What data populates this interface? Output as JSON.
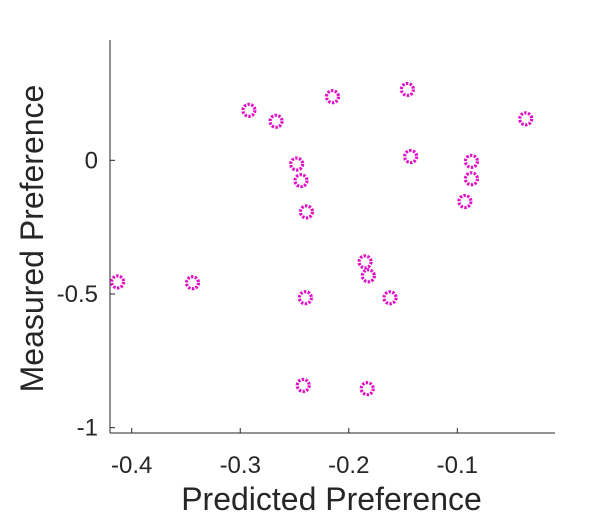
{
  "chart_data": {
    "type": "scatter",
    "xlabel": "Predicted Preference",
    "ylabel": "Measured Preference",
    "xlim": [
      -0.42,
      -0.01
    ],
    "ylim": [
      -1.02,
      0.45
    ],
    "xticks": [
      -0.4,
      -0.3,
      -0.2,
      -0.1
    ],
    "xtick_labels": [
      "-0.4",
      "-0.3",
      "-0.2",
      "-0.1"
    ],
    "yticks": [
      -1,
      -0.5,
      0
    ],
    "ytick_labels": [
      "-1",
      "-0.5",
      "0"
    ],
    "grid": false,
    "marker": "circle-with-dots",
    "color": "#e010c8",
    "points": [
      {
        "x": -0.413,
        "y": -0.455
      },
      {
        "x": -0.344,
        "y": -0.458
      },
      {
        "x": -0.292,
        "y": 0.187
      },
      {
        "x": -0.267,
        "y": 0.146
      },
      {
        "x": -0.215,
        "y": 0.238
      },
      {
        "x": -0.146,
        "y": 0.265
      },
      {
        "x": -0.037,
        "y": 0.155
      },
      {
        "x": -0.248,
        "y": -0.014
      },
      {
        "x": -0.244,
        "y": -0.076
      },
      {
        "x": -0.143,
        "y": 0.014
      },
      {
        "x": -0.087,
        "y": -0.004
      },
      {
        "x": -0.087,
        "y": -0.069
      },
      {
        "x": -0.093,
        "y": -0.154
      },
      {
        "x": -0.239,
        "y": -0.193
      },
      {
        "x": -0.185,
        "y": -0.38
      },
      {
        "x": -0.182,
        "y": -0.432
      },
      {
        "x": -0.162,
        "y": -0.514
      },
      {
        "x": -0.24,
        "y": -0.514
      },
      {
        "x": -0.242,
        "y": -0.842
      },
      {
        "x": -0.183,
        "y": -0.854
      }
    ]
  }
}
